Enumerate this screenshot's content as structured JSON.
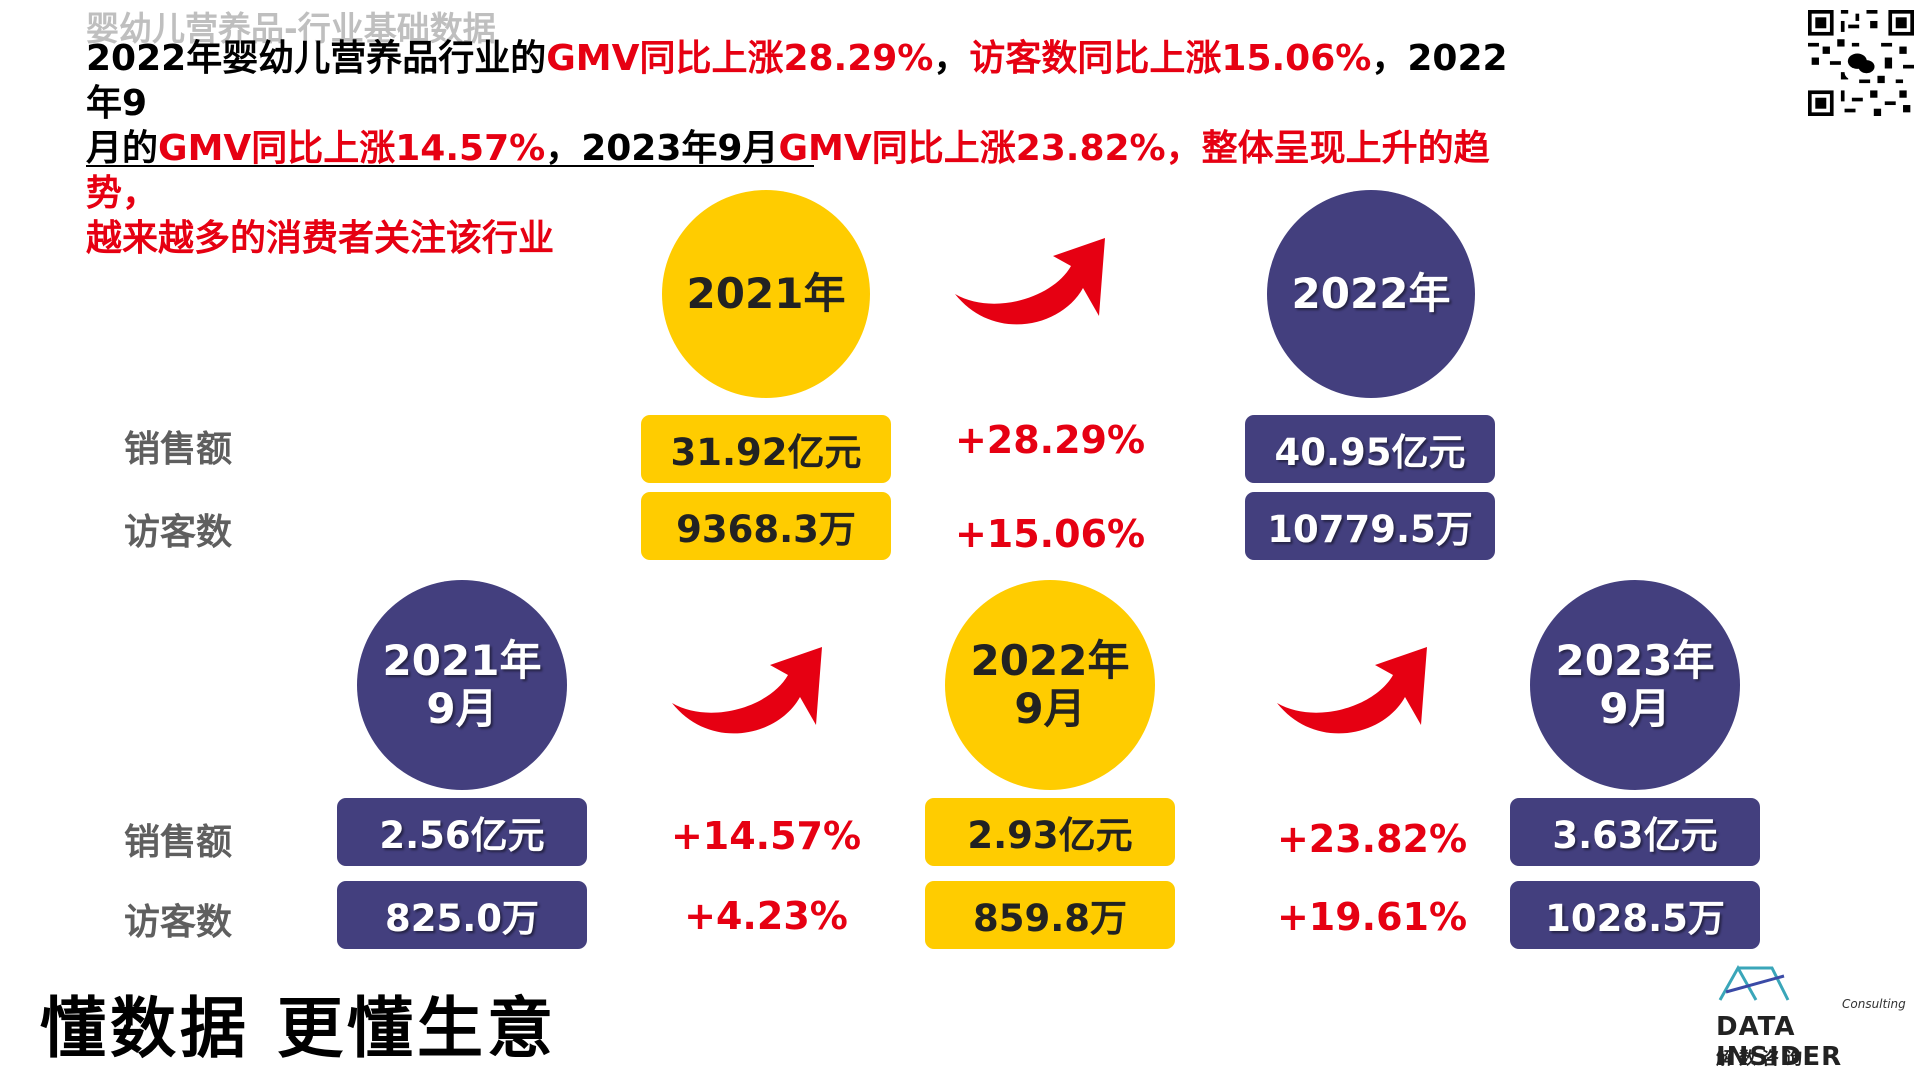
{
  "header": {
    "subtitle": "婴幼儿营养品-行业基础数据",
    "headline": {
      "l1_a": "2022年婴幼儿营养品行业的",
      "l1_b": "GMV同比上涨28.29%",
      "l1_c": "，",
      "l1_d": "访客数同比上涨15.06%",
      "l1_e": "，2022年9",
      "l2_a": "月的",
      "l2_b": "GMV同比上涨14.57%",
      "l2_c": "，2023年9月",
      "l2_d": "GMV同比上涨23.82%，整体呈现上升的趋势，",
      "l3_a": "越来越多的消费者关注该行业"
    }
  },
  "row_labels": {
    "sales": "销售额",
    "visitors": "访客数"
  },
  "annual": {
    "y2021": {
      "label": "2021年",
      "sales": "31.92亿元",
      "visitors": "9368.3万",
      "color": "#ffcc00"
    },
    "y2022": {
      "label": "2022年",
      "sales": "40.95亿元",
      "visitors": "10779.5万",
      "color": "#433f7e"
    },
    "growth": {
      "sales": "+28.29%",
      "visitors": "+15.06%"
    }
  },
  "september": {
    "s2021": {
      "year": "2021年",
      "month": "9月",
      "sales": "2.56亿元",
      "visitors": "825.0万",
      "color": "#433f7e"
    },
    "s2022": {
      "year": "2022年",
      "month": "9月",
      "sales": "2.93亿元",
      "visitors": "859.8万",
      "color": "#ffcc00"
    },
    "s2023": {
      "year": "2023年",
      "month": "9月",
      "sales": "3.63亿元",
      "visitors": "1028.5万",
      "color": "#433f7e"
    },
    "growth_21_22": {
      "sales": "+14.57%",
      "visitors": "+4.23%"
    },
    "growth_22_23": {
      "sales": "+23.82%",
      "visitors": "+19.61%"
    }
  },
  "footer": {
    "slogan": "懂数据 更懂生意",
    "logo_consulting": "Consulting",
    "logo_name": "DATA INSIDER",
    "logo_cn": "解数咨询"
  },
  "icons": {
    "growth_arrow": "red-curved-arrow-icon",
    "qr": "qr-code-icon"
  },
  "colors": {
    "accent_red": "#e60012",
    "yellow": "#ffcc00",
    "navy": "#433f7e"
  }
}
